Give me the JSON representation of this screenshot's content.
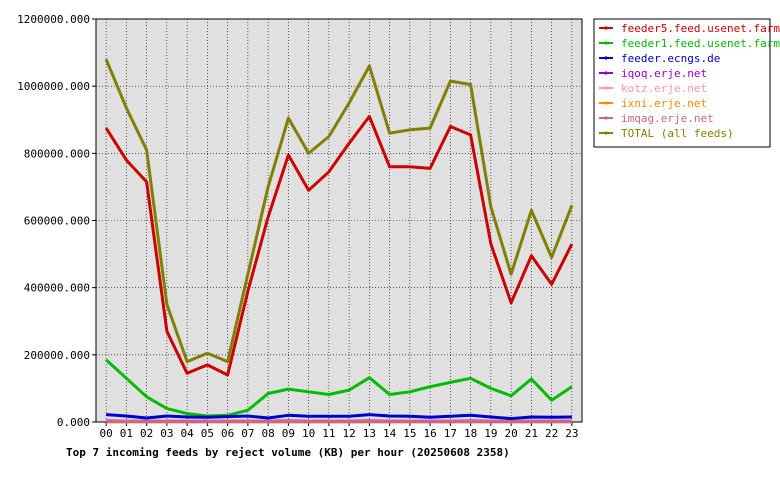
{
  "chart_data": {
    "type": "line",
    "title": "Top 7 incoming feeds by reject volume (KB) per hour (20250608 2358)",
    "xlabel": "",
    "ylabel": "",
    "categories": [
      "00",
      "01",
      "02",
      "03",
      "04",
      "05",
      "06",
      "07",
      "08",
      "09",
      "10",
      "11",
      "12",
      "13",
      "14",
      "15",
      "16",
      "17",
      "18",
      "19",
      "20",
      "21",
      "22",
      "23"
    ],
    "ylim": [
      0,
      1200000
    ],
    "yticks": [
      "0.000",
      "200000.000",
      "400000.000",
      "600000.000",
      "800000.000",
      "1000000.000",
      "1200000.000"
    ],
    "grid": true,
    "legend_position": "right",
    "series": [
      {
        "name": "feeder5.feed.usenet.farm",
        "color": "#cc0000",
        "values": [
          875000,
          780000,
          715000,
          270000,
          145000,
          170000,
          140000,
          390000,
          610000,
          795000,
          690000,
          745000,
          830000,
          910000,
          760000,
          760000,
          755000,
          880000,
          855000,
          530000,
          355000,
          495000,
          410000,
          530000
        ]
      },
      {
        "name": "feeder1.feed.usenet.farm",
        "color": "#00bb00",
        "values": [
          185000,
          130000,
          75000,
          40000,
          25000,
          18000,
          20000,
          35000,
          85000,
          98000,
          90000,
          82000,
          95000,
          132000,
          82000,
          90000,
          105000,
          118000,
          130000,
          100000,
          78000,
          128000,
          65000,
          105000
        ]
      },
      {
        "name": "feeder.ecngs.de",
        "color": "#0000cc",
        "values": [
          22000,
          18000,
          12000,
          18000,
          15000,
          14000,
          16000,
          18000,
          12000,
          20000,
          17000,
          17000,
          17000,
          22000,
          18000,
          17000,
          14000,
          17000,
          20000,
          15000,
          10000,
          15000,
          14000,
          15000
        ]
      },
      {
        "name": "iqoq.erje.net",
        "color": "#9900cc",
        "values": [
          3000,
          2500,
          2000,
          2500,
          2000,
          2000,
          2000,
          2000,
          2000,
          3000,
          2500,
          2500,
          2500,
          3000,
          2500,
          2500,
          2000,
          2500,
          3000,
          2000,
          1500,
          2000,
          2000,
          2000
        ]
      },
      {
        "name": "kotz.erje.net",
        "color": "#ff9999",
        "values": [
          1500,
          1500,
          1000,
          1000,
          1000,
          1000,
          1000,
          1000,
          1000,
          1500,
          1000,
          1000,
          1000,
          1500,
          1000,
          1000,
          1000,
          1000,
          1500,
          1000,
          1000,
          1000,
          1000,
          1000
        ]
      },
      {
        "name": "ixni.erje.net",
        "color": "#ff8800",
        "values": [
          1000,
          1000,
          800,
          800,
          800,
          800,
          800,
          800,
          800,
          1000,
          800,
          800,
          800,
          1000,
          800,
          800,
          800,
          800,
          1000,
          800,
          800,
          800,
          800,
          800
        ]
      },
      {
        "name": "imqag.erje.net",
        "color": "#cc6688",
        "values": [
          800,
          800,
          600,
          600,
          600,
          600,
          600,
          600,
          600,
          800,
          600,
          600,
          600,
          800,
          600,
          600,
          600,
          600,
          800,
          600,
          600,
          600,
          600,
          600
        ]
      },
      {
        "name": "TOTAL (all feeds)",
        "color": "#808000",
        "values": [
          1080000,
          935000,
          810000,
          350000,
          180000,
          205000,
          180000,
          440000,
          700000,
          905000,
          800000,
          850000,
          950000,
          1060000,
          860000,
          870000,
          875000,
          1015000,
          1005000,
          640000,
          440000,
          630000,
          490000,
          645000
        ]
      }
    ]
  }
}
